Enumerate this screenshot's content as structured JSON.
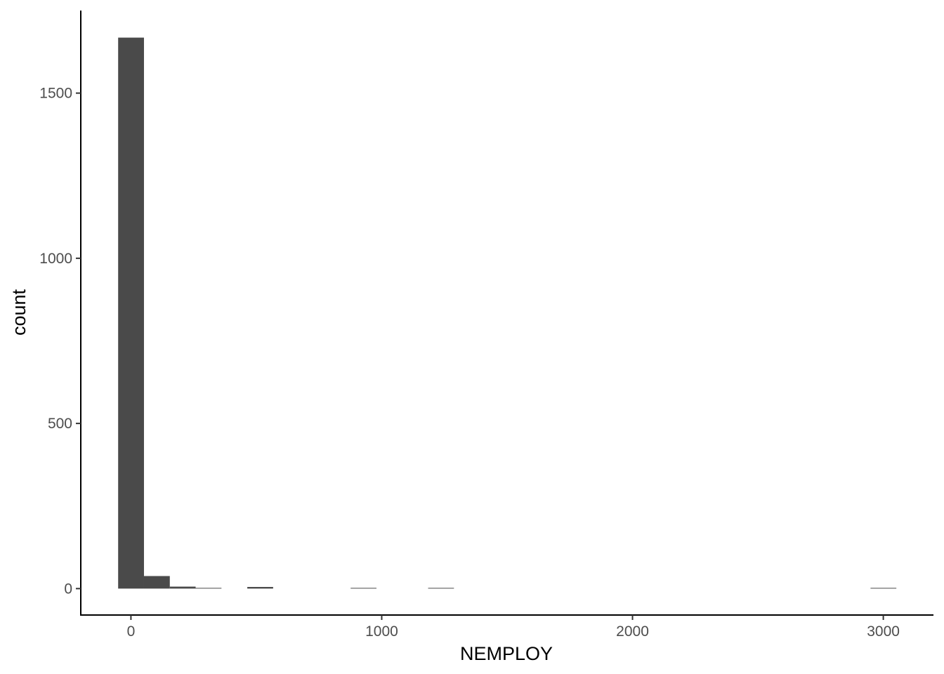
{
  "chart_data": {
    "type": "bar",
    "subtype": "histogram",
    "xlabel": "NEMPLOY",
    "ylabel": "count",
    "xlim": [
      -200,
      3200
    ],
    "ylim": [
      -80,
      1750
    ],
    "x_ticks": [
      0,
      1000,
      2000,
      3000
    ],
    "y_ticks": [
      0,
      500,
      1000,
      1500
    ],
    "x_tick_labels": [
      "0",
      "1000",
      "2000",
      "3000"
    ],
    "y_tick_labels": [
      "0",
      "500",
      "1000",
      "1500"
    ],
    "bin_width": 103,
    "bins": [
      {
        "x0": -51,
        "x1": 52,
        "count": 1668
      },
      {
        "x0": 52,
        "x1": 155,
        "count": 38
      },
      {
        "x0": 155,
        "x1": 258,
        "count": 6
      },
      {
        "x0": 258,
        "x1": 361,
        "count": 1
      },
      {
        "x0": 464,
        "x1": 567,
        "count": 5
      },
      {
        "x0": 876,
        "x1": 979,
        "count": 1
      },
      {
        "x0": 1185,
        "x1": 1288,
        "count": 1
      },
      {
        "x0": 2949,
        "x1": 3052,
        "count": 1
      }
    ],
    "bar_color": "#4a4a4a",
    "grid": false,
    "legend": "none"
  }
}
